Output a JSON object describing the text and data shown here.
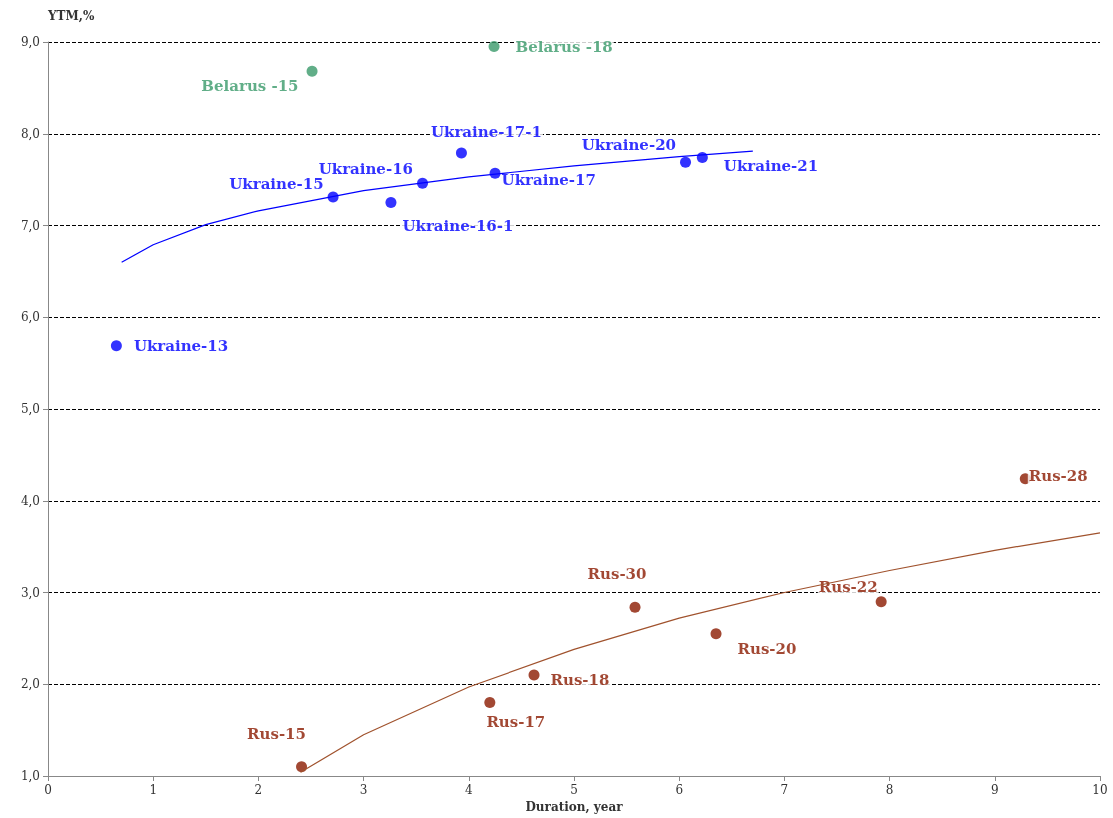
{
  "chart_data": {
    "type": "scatter",
    "xlabel": "Duration, year",
    "ylabel": "YTM,%",
    "xlim": [
      0,
      10
    ],
    "xticks": [
      0,
      1,
      2,
      3,
      4,
      5,
      6,
      7,
      8,
      9,
      10
    ],
    "ylim": [
      1,
      9
    ],
    "yticks": [
      {
        "value": 1,
        "label": "1,0"
      },
      {
        "value": 2,
        "label": "2,0"
      },
      {
        "value": 3,
        "label": "3,0"
      },
      {
        "value": 4,
        "label": "4,0"
      },
      {
        "value": 5,
        "label": "5,0"
      },
      {
        "value": 6,
        "label": "6,0"
      },
      {
        "value": 7,
        "label": "7,0"
      },
      {
        "value": 8,
        "label": "8,0"
      },
      {
        "value": 9,
        "label": "9,0"
      }
    ],
    "grid": "y",
    "marker": "circle",
    "series": [
      {
        "color": "#3a9a6a",
        "x": [
          2.51,
          4.24
        ],
        "values": [
          8.68,
          8.95
        ]
      },
      {
        "color": "#0000ff",
        "x": [
          0.65,
          2.71,
          3.56,
          3.26,
          3.93,
          4.25,
          6.06,
          6.22
        ],
        "values": [
          5.69,
          7.31,
          7.46,
          7.25,
          7.79,
          7.57,
          7.69,
          7.74
        ]
      },
      {
        "color": "#8b1a00",
        "x": [
          2.41,
          4.2,
          4.62,
          5.58,
          6.35,
          7.92,
          9.29
        ],
        "values": [
          1.1,
          1.8,
          2.1,
          2.84,
          2.55,
          2.9,
          4.24
        ]
      },
      {
        "type": "line",
        "color": "#0000ff",
        "marker": "none",
        "line_style": "solid",
        "x": [
          0.7,
          1,
          1.5,
          2,
          3,
          4,
          5,
          6,
          6.7
        ],
        "values": [
          6.6,
          6.79,
          7.01,
          7.16,
          7.38,
          7.53,
          7.65,
          7.75,
          7.81
        ]
      },
      {
        "type": "line",
        "color": "#a0522d",
        "marker": "none",
        "line_style": "solid",
        "x": [
          2.4,
          3,
          4,
          5,
          6,
          7,
          8,
          9,
          10
        ],
        "values": [
          1.04,
          1.45,
          1.97,
          2.38,
          2.72,
          3.0,
          3.24,
          3.46,
          3.65
        ]
      }
    ],
    "annotations": [
      {
        "text": "Belarus -15",
        "x": 2.51,
        "y": 8.68
      },
      {
        "text": "Belarus -18",
        "x": 4.24,
        "y": 8.95
      },
      {
        "text": "Ukraine-13",
        "x": 0.65,
        "y": 5.69
      },
      {
        "text": "Ukraine-15",
        "x": 2.71,
        "y": 7.31
      },
      {
        "text": "Ukraine-16",
        "x": 3.56,
        "y": 7.46
      },
      {
        "text": "Ukraine-16-1",
        "x": 3.26,
        "y": 7.25
      },
      {
        "text": "Ukraine-17-1",
        "x": 3.93,
        "y": 7.79
      },
      {
        "text": "Ukraine-17",
        "x": 4.25,
        "y": 7.57
      },
      {
        "text": "Ukraine-20",
        "x": 6.06,
        "y": 7.69
      },
      {
        "text": "Ukraine-21",
        "x": 6.22,
        "y": 7.74
      },
      {
        "text": "Rus-15",
        "x": 2.41,
        "y": 1.1
      },
      {
        "text": "Rus-17",
        "x": 4.2,
        "y": 1.8
      },
      {
        "text": "Rus-18",
        "x": 4.62,
        "y": 2.1
      },
      {
        "text": "Rus-30",
        "x": 5.58,
        "y": 2.84
      },
      {
        "text": "Rus-20",
        "x": 6.35,
        "y": 2.55
      },
      {
        "text": "Rus-22",
        "x": 7.92,
        "y": 2.9
      },
      {
        "text": "Rus-28",
        "x": 9.29,
        "y": 4.24
      }
    ]
  }
}
